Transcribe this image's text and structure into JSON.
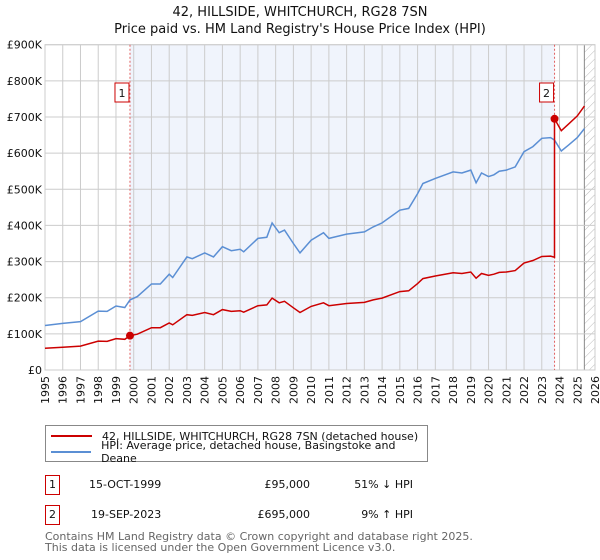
{
  "chart_data": {
    "type": "line",
    "title": "42, HILLSIDE, WHITCHURCH, RG28 7SN",
    "subtitle": "Price paid vs. HM Land Registry's House Price Index (HPI)",
    "xlim": [
      1995,
      2026
    ],
    "ylim": [
      0,
      900000
    ],
    "x_ticks": [
      "1995",
      "1996",
      "1997",
      "1998",
      "1999",
      "2000",
      "2001",
      "2002",
      "2003",
      "2004",
      "2005",
      "2006",
      "2007",
      "2008",
      "2009",
      "2010",
      "2011",
      "2012",
      "2013",
      "2014",
      "2015",
      "2016",
      "2017",
      "2018",
      "2019",
      "2020",
      "2021",
      "2022",
      "2023",
      "2024",
      "2025",
      "2026"
    ],
    "y_ticks": [
      {
        "v": 0,
        "label": "£0"
      },
      {
        "v": 100000,
        "label": "£100K"
      },
      {
        "v": 200000,
        "label": "£200K"
      },
      {
        "v": 300000,
        "label": "£300K"
      },
      {
        "v": 400000,
        "label": "£400K"
      },
      {
        "v": 500000,
        "label": "£500K"
      },
      {
        "v": 600000,
        "label": "£600K"
      },
      {
        "v": 700000,
        "label": "£700K"
      },
      {
        "v": 800000,
        "label": "£800K"
      },
      {
        "v": 900000,
        "label": "£900K"
      }
    ],
    "grid": true,
    "ownership_shade": [
      1999.79,
      2023.72
    ],
    "forecast_hatch_from": 2025.4,
    "series": [
      {
        "name": "42, HILLSIDE, WHITCHURCH, RG28 7SN (detached house)",
        "color": "#cc0000",
        "x": [
          1995.0,
          1996.0,
          1997.0,
          1998.0,
          1998.5,
          1999.0,
          1999.5,
          1999.79,
          2000.2,
          2001.0,
          2001.5,
          2002.0,
          2002.2,
          2003.0,
          2003.3,
          2004.0,
          2004.5,
          2005.0,
          2005.5,
          2006.0,
          2006.2,
          2007.0,
          2007.5,
          2007.8,
          2008.2,
          2008.5,
          2009.0,
          2009.37,
          2010.0,
          2010.7,
          2011.0,
          2012.0,
          2013.0,
          2013.5,
          2014.0,
          2015.0,
          2015.5,
          2016.0,
          2016.3,
          2017.0,
          2018.0,
          2018.5,
          2019.0,
          2019.3,
          2019.6,
          2020.0,
          2020.3,
          2020.6,
          2021.0,
          2021.5,
          2022.0,
          2022.5,
          2023.0,
          2023.5,
          2023.72,
          2023.72,
          2024.1,
          2024.5,
          2025.0,
          2025.4
        ],
        "values": [
          60000,
          63000,
          66000,
          80000,
          79000,
          87000,
          85000,
          95000,
          99000,
          117000,
          117000,
          130000,
          125000,
          153000,
          151000,
          159000,
          153000,
          167000,
          162000,
          164000,
          160000,
          178000,
          180000,
          199000,
          186000,
          190000,
          172000,
          159000,
          176000,
          186000,
          178000,
          184000,
          187000,
          194000,
          199000,
          217000,
          219000,
          239000,
          253000,
          260000,
          269000,
          267000,
          271000,
          254000,
          267000,
          262000,
          265000,
          270000,
          271000,
          275000,
          296000,
          303000,
          314000,
          315000,
          312000,
          695000,
          662000,
          680000,
          703000,
          730000
        ]
      },
      {
        "name": "HPI: Average price, detached house, Basingstoke and Deane",
        "color": "#5b8fd4",
        "x": [
          1995.0,
          1996.0,
          1997.0,
          1998.0,
          1998.5,
          1999.0,
          1999.5,
          1999.79,
          2000.2,
          2001.0,
          2001.5,
          2002.0,
          2002.2,
          2003.0,
          2003.3,
          2004.0,
          2004.5,
          2005.0,
          2005.5,
          2006.0,
          2006.2,
          2007.0,
          2007.5,
          2007.8,
          2008.2,
          2008.5,
          2009.0,
          2009.37,
          2010.0,
          2010.7,
          2011.0,
          2012.0,
          2013.0,
          2013.5,
          2014.0,
          2015.0,
          2015.5,
          2016.0,
          2016.3,
          2017.0,
          2018.0,
          2018.5,
          2019.0,
          2019.3,
          2019.6,
          2020.0,
          2020.3,
          2020.6,
          2021.0,
          2021.5,
          2022.0,
          2022.5,
          2023.0,
          2023.5,
          2023.72,
          2024.1,
          2024.5,
          2025.0,
          2025.4
        ],
        "values": [
          123000,
          129000,
          134000,
          163000,
          162000,
          177000,
          173000,
          194000,
          203000,
          238000,
          238000,
          265000,
          256000,
          313000,
          308000,
          324000,
          313000,
          341000,
          330000,
          334000,
          327000,
          364000,
          367000,
          407000,
          380000,
          387000,
          350000,
          324000,
          359000,
          380000,
          364000,
          376000,
          382000,
          396000,
          407000,
          442000,
          447000,
          488000,
          516000,
          530000,
          548000,
          545000,
          553000,
          518000,
          545000,
          535000,
          540000,
          550000,
          553000,
          562000,
          604000,
          618000,
          641000,
          643000,
          636000,
          606000,
          622000,
          643000,
          668000
        ]
      }
    ],
    "sales": [
      {
        "id": "1",
        "x": 1999.79,
        "value": 95000
      },
      {
        "id": "2",
        "x": 2023.72,
        "value": 695000
      }
    ]
  },
  "legend": {
    "property": "42, HILLSIDE, WHITCHURCH, RG28 7SN (detached house)",
    "hpi": "HPI: Average price, detached house, Basingstoke and Deane"
  },
  "transactions": [
    {
      "id": "1",
      "date": "15-OCT-1999",
      "price": "£95,000",
      "hpi": "51% ↓ HPI"
    },
    {
      "id": "2",
      "date": "19-SEP-2023",
      "price": "£695,000",
      "hpi": "9% ↑ HPI"
    }
  ],
  "footer": {
    "line1": "Contains HM Land Registry data © Crown copyright and database right 2025.",
    "line2": "This data is licensed under the Open Government Licence v3.0."
  },
  "colors": {
    "property": "#cc0000",
    "hpi": "#5b8fd4",
    "shade": "#f0f4fc",
    "grid": "#cccccc"
  }
}
